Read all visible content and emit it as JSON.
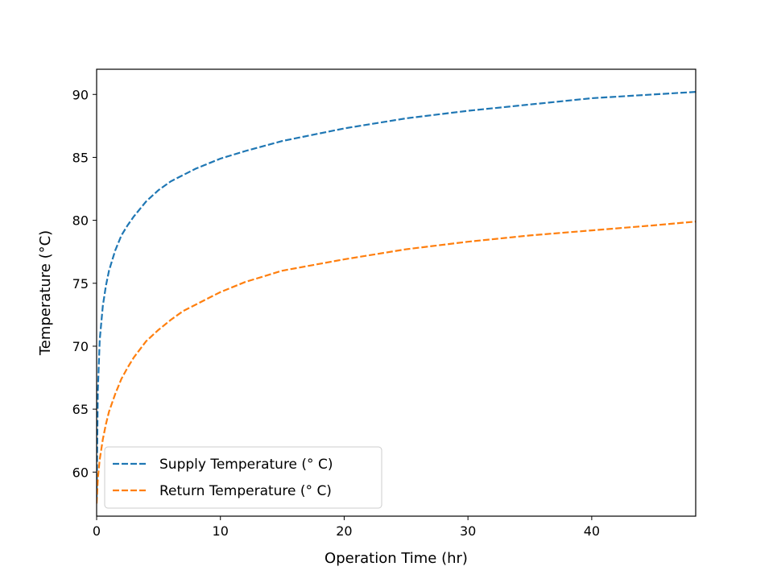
{
  "chart_data": {
    "type": "line",
    "xlabel": "Operation Time (hr)",
    "ylabel": "Temperature (°C)",
    "xlim": [
      0,
      48.4
    ],
    "ylim": [
      56.5,
      92.0
    ],
    "xticks": [
      "0",
      "10",
      "20",
      "30",
      "40"
    ],
    "yticks": [
      "60",
      "65",
      "70",
      "75",
      "80",
      "85",
      "90"
    ],
    "grid": false,
    "legend_position": "lower-left",
    "series": [
      {
        "name": "Supply Temperature (° C)",
        "color": "#1f77b4",
        "line_style": "dashed",
        "x": [
          0,
          0.1,
          0.25,
          0.5,
          0.75,
          1,
          1.5,
          2,
          2.5,
          3,
          4,
          5,
          6,
          7,
          8,
          10,
          12,
          15,
          20,
          25,
          30,
          35,
          40,
          45,
          48.4
        ],
        "y": [
          58,
          66.5,
          70.5,
          73.2,
          74.8,
          76,
          77.6,
          78.8,
          79.6,
          80.3,
          81.5,
          82.4,
          83.1,
          83.6,
          84.1,
          84.9,
          85.5,
          86.3,
          87.3,
          88.1,
          88.7,
          89.2,
          89.7,
          90.0,
          90.2
        ]
      },
      {
        "name": "Return Temperature (° C)",
        "color": "#ff7f0e",
        "line_style": "dashed",
        "x": [
          0,
          0.1,
          0.25,
          0.5,
          0.75,
          1,
          1.5,
          2,
          2.5,
          3,
          4,
          5,
          6,
          7,
          8,
          10,
          12,
          15,
          20,
          25,
          30,
          35,
          40,
          45,
          48.4
        ],
        "y": [
          57.5,
          59.5,
          61.0,
          62.6,
          63.8,
          64.8,
          66.2,
          67.4,
          68.3,
          69.1,
          70.4,
          71.3,
          72.1,
          72.8,
          73.3,
          74.3,
          75.1,
          76.0,
          76.9,
          77.7,
          78.3,
          78.8,
          79.2,
          79.6,
          79.9
        ]
      }
    ]
  }
}
